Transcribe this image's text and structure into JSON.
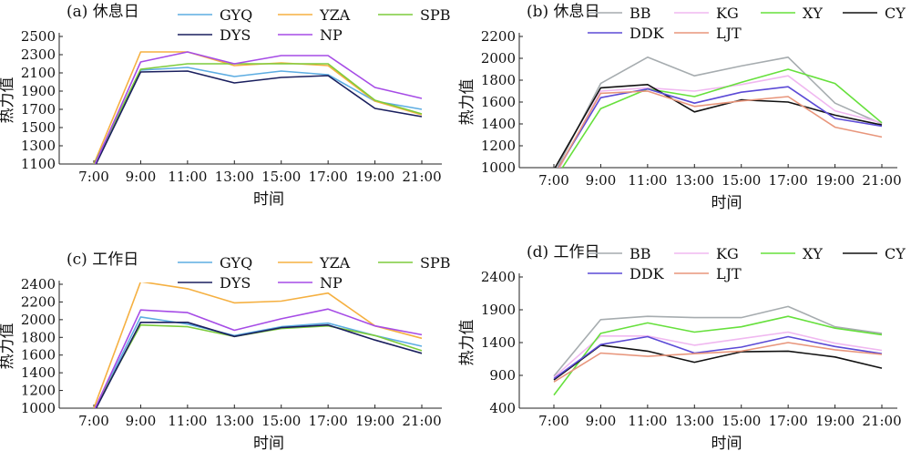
{
  "chart_data": [
    {
      "type": "line",
      "title": "(a) 休息日",
      "xlabel": "时间",
      "ylabel": "热力值",
      "categories": [
        "7:00",
        "9:00",
        "11:00",
        "13:00",
        "15:00",
        "17:00",
        "19:00",
        "21:00"
      ],
      "ylim": [
        1100,
        2500
      ],
      "yticks": [
        1100,
        1300,
        1500,
        1700,
        1900,
        2100,
        2300,
        2500
      ],
      "grid": false,
      "legend": "top",
      "series": [
        {
          "name": "GYQ",
          "color": "#5dade2",
          "values": [
            1060,
            2130,
            2160,
            2060,
            2120,
            2080,
            1790,
            1700
          ]
        },
        {
          "name": "YZA",
          "color": "#f5b041",
          "values": [
            1100,
            2330,
            2330,
            2180,
            2210,
            2180,
            1790,
            1640
          ]
        },
        {
          "name": "SPB",
          "color": "#7dcc3c",
          "values": [
            1090,
            2140,
            2200,
            2200,
            2200,
            2200,
            1800,
            1650
          ]
        },
        {
          "name": "DYS",
          "color": "#1a1f5e",
          "values": [
            1050,
            2110,
            2120,
            1990,
            2050,
            2070,
            1710,
            1620
          ]
        },
        {
          "name": "NP",
          "color": "#a64ce6",
          "values": [
            1070,
            2220,
            2330,
            2200,
            2290,
            2290,
            1940,
            1820
          ]
        }
      ]
    },
    {
      "type": "line",
      "title": "(b) 休息日",
      "xlabel": "时间",
      "ylabel": "热力值",
      "categories": [
        "7:00",
        "9:00",
        "11:00",
        "13:00",
        "15:00",
        "17:00",
        "19:00",
        "21:00"
      ],
      "ylim": [
        1000,
        2200
      ],
      "yticks": [
        1000,
        1200,
        1400,
        1600,
        1800,
        2000,
        2200
      ],
      "grid": false,
      "legend": "top",
      "series": [
        {
          "name": "BB",
          "color": "#a6acaf",
          "values": [
            940,
            1770,
            2010,
            1840,
            1930,
            2010,
            1590,
            1400
          ]
        },
        {
          "name": "KG",
          "color": "#f0b8f0",
          "values": [
            900,
            1700,
            1730,
            1700,
            1760,
            1840,
            1520,
            1410
          ]
        },
        {
          "name": "XY",
          "color": "#66e03c",
          "values": [
            880,
            1540,
            1720,
            1650,
            1780,
            1900,
            1770,
            1410
          ]
        },
        {
          "name": "CY",
          "color": "#111111",
          "values": [
            980,
            1730,
            1760,
            1510,
            1620,
            1600,
            1480,
            1390
          ]
        },
        {
          "name": "DDK",
          "color": "#5b4ad6",
          "values": [
            930,
            1640,
            1720,
            1590,
            1690,
            1740,
            1450,
            1380
          ]
        },
        {
          "name": "LJT",
          "color": "#e8967c",
          "values": [
            920,
            1680,
            1700,
            1560,
            1610,
            1650,
            1370,
            1280
          ]
        }
      ]
    },
    {
      "type": "line",
      "title": "(c) 工作日",
      "xlabel": "时间",
      "ylabel": "热力值",
      "categories": [
        "7:00",
        "9:00",
        "11:00",
        "13:00",
        "15:00",
        "17:00",
        "19:00",
        "21:00"
      ],
      "ylim": [
        1000,
        2400
      ],
      "yticks": [
        1000,
        1200,
        1400,
        1600,
        1800,
        2000,
        2200,
        2400
      ],
      "grid": false,
      "legend": "top",
      "series": [
        {
          "name": "GYQ",
          "color": "#5dade2",
          "values": [
            960,
            2030,
            1950,
            1820,
            1920,
            1960,
            1820,
            1700
          ]
        },
        {
          "name": "YZA",
          "color": "#f5b041",
          "values": [
            1000,
            2430,
            2350,
            2190,
            2210,
            2300,
            1930,
            1790
          ]
        },
        {
          "name": "SPB",
          "color": "#7dcc3c",
          "values": [
            980,
            1940,
            1920,
            1810,
            1900,
            1930,
            1820,
            1650
          ]
        },
        {
          "name": "DYS",
          "color": "#1a1f5e",
          "values": [
            950,
            1970,
            1970,
            1810,
            1910,
            1940,
            1770,
            1620
          ]
        },
        {
          "name": "NP",
          "color": "#a64ce6",
          "values": [
            970,
            2110,
            2080,
            1880,
            2010,
            2120,
            1930,
            1830
          ]
        }
      ]
    },
    {
      "type": "line",
      "title": "(d) 工作日",
      "xlabel": "时间",
      "ylabel": "热力值",
      "categories": [
        "7:00",
        "9:00",
        "11:00",
        "13:00",
        "15:00",
        "17:00",
        "19:00",
        "21:00"
      ],
      "ylim": [
        400,
        2400
      ],
      "yticks": [
        400,
        900,
        1400,
        1900,
        2400
      ],
      "grid": false,
      "legend": "top",
      "series": [
        {
          "name": "BB",
          "color": "#a6acaf",
          "values": [
            890,
            1750,
            1800,
            1780,
            1780,
            1950,
            1640,
            1540
          ]
        },
        {
          "name": "KG",
          "color": "#f0b8f0",
          "values": [
            870,
            1500,
            1500,
            1360,
            1460,
            1560,
            1390,
            1280
          ]
        },
        {
          "name": "XY",
          "color": "#66e03c",
          "values": [
            600,
            1540,
            1700,
            1560,
            1640,
            1800,
            1620,
            1520
          ]
        },
        {
          "name": "CY",
          "color": "#111111",
          "values": [
            830,
            1360,
            1270,
            1100,
            1260,
            1270,
            1180,
            1010
          ]
        },
        {
          "name": "DDK",
          "color": "#5b4ad6",
          "values": [
            850,
            1370,
            1490,
            1240,
            1330,
            1490,
            1340,
            1230
          ]
        },
        {
          "name": "LJT",
          "color": "#e8967c",
          "values": [
            800,
            1240,
            1190,
            1230,
            1270,
            1400,
            1290,
            1220
          ]
        }
      ]
    }
  ]
}
